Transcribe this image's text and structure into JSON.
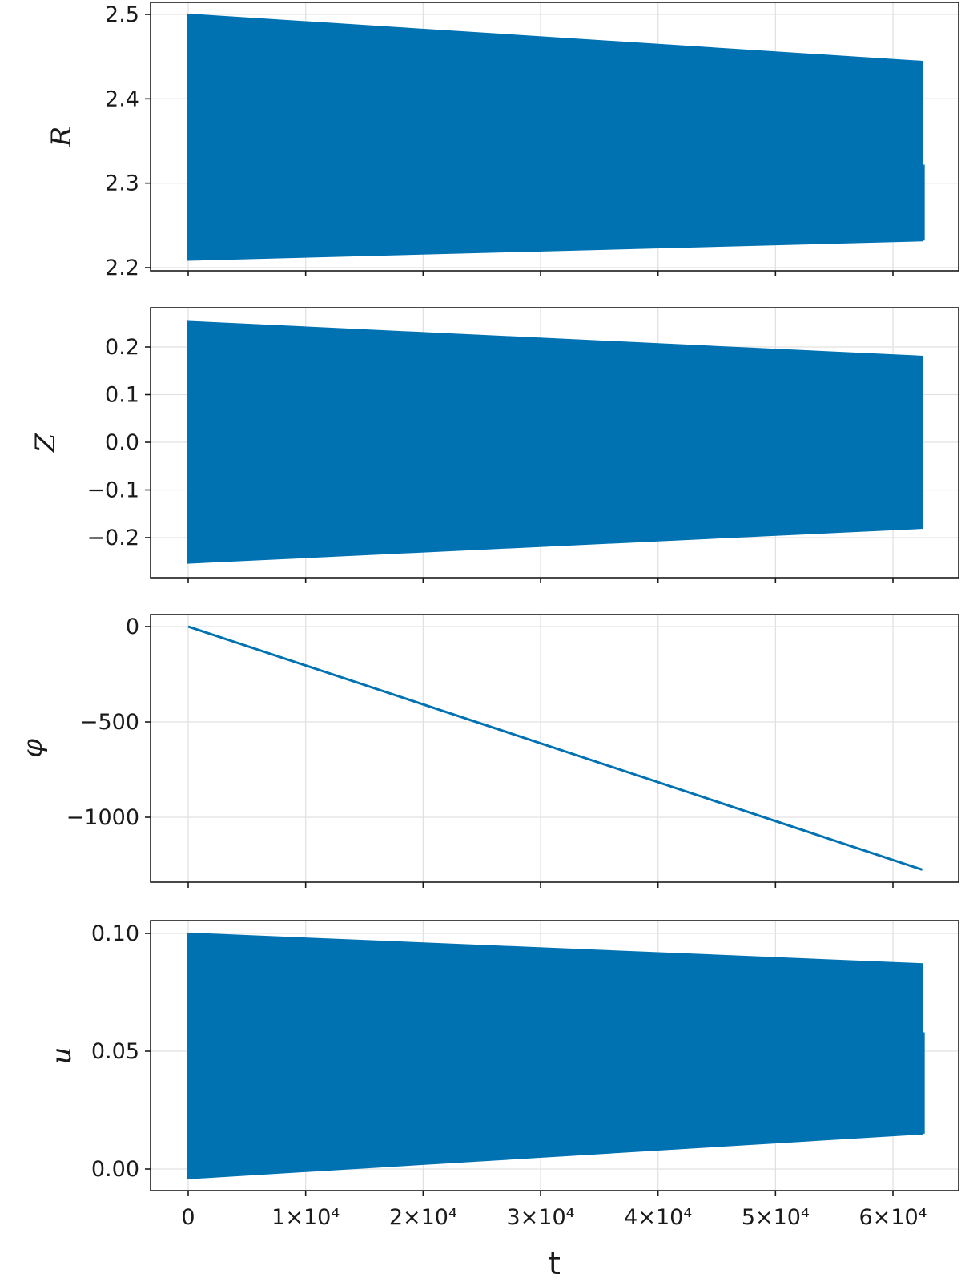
{
  "chart_data": [
    {
      "type": "area",
      "ylabel": "R",
      "ylim": [
        2.2,
        2.5
      ],
      "yticks": [
        {
          "v": 2.2,
          "label": "2.2"
        },
        {
          "v": 2.3,
          "label": "2.3"
        },
        {
          "v": 2.4,
          "label": "2.4"
        },
        {
          "v": 2.5,
          "label": "2.5"
        }
      ],
      "show_xticklabels": false,
      "series": [
        {
          "x": [
            0,
            62500
          ],
          "upper": [
            2.5,
            2.444
          ],
          "lower": [
            2.209,
            2.232
          ],
          "end_value": 2.322
        }
      ]
    },
    {
      "type": "area",
      "ylabel": "Z",
      "ylim": [
        -0.255,
        0.255
      ],
      "yticks": [
        {
          "v": -0.2,
          "label": "−0.2"
        },
        {
          "v": -0.1,
          "label": "−0.1"
        },
        {
          "v": 0.0,
          "label": "0.0"
        },
        {
          "v": 0.1,
          "label": "0.1"
        },
        {
          "v": 0.2,
          "label": "0.2"
        }
      ],
      "show_xticklabels": false,
      "series": [
        {
          "x": [
            0,
            62500
          ],
          "upper": [
            0.253,
            0.18
          ],
          "lower": [
            -0.253,
            -0.18
          ],
          "start_value": 0.0
        }
      ]
    },
    {
      "type": "line",
      "ylabel": "φ",
      "ylim": [
        -1300,
        0
      ],
      "yticks": [
        {
          "v": -1000,
          "label": "−1000"
        },
        {
          "v": -500,
          "label": "−500"
        },
        {
          "v": 0,
          "label": "0"
        }
      ],
      "show_xticklabels": false,
      "series": [
        {
          "x": [
            0,
            62500
          ],
          "y": [
            0,
            -1275
          ]
        }
      ]
    },
    {
      "type": "area",
      "ylabel": "u",
      "ylim": [
        -0.004,
        0.1
      ],
      "yticks": [
        {
          "v": 0.0,
          "label": "0.00"
        },
        {
          "v": 0.05,
          "label": "0.05"
        },
        {
          "v": 0.1,
          "label": "0.10"
        }
      ],
      "show_xticklabels": true,
      "xlabel": "t",
      "series": [
        {
          "x": [
            0,
            62500
          ],
          "upper": [
            0.1,
            0.087
          ],
          "lower": [
            -0.004,
            0.015
          ],
          "end_value": 0.058
        }
      ]
    }
  ],
  "xaxis": {
    "xlim": [
      0,
      62500
    ],
    "xticks": [
      {
        "v": 0,
        "label": "0"
      },
      {
        "v": 10000,
        "label": "1×10⁴"
      },
      {
        "v": 20000,
        "label": "2×10⁴"
      },
      {
        "v": 30000,
        "label": "3×10⁴"
      },
      {
        "v": 40000,
        "label": "4×10⁴"
      },
      {
        "v": 50000,
        "label": "5×10⁴"
      },
      {
        "v": 60000,
        "label": "6×10⁴"
      }
    ]
  },
  "colors": {
    "series": "#0072b2",
    "grid": "#e2e2e2",
    "axis": "#1a1a1a"
  },
  "grid": true
}
